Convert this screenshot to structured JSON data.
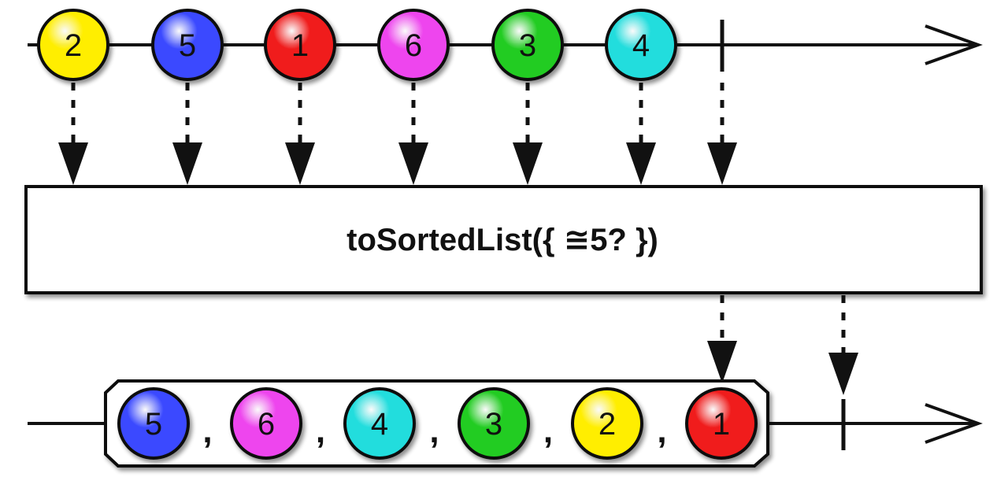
{
  "operator": {
    "label": "toSortedList({ ≅5? })"
  },
  "colors": {
    "yellow": "#ffee00",
    "blue": "#3a49ff",
    "red": "#f01c1c",
    "magenta": "#ee44ee",
    "green": "#22cc22",
    "cyan": "#22dddd"
  },
  "input_stream": {
    "marbles": [
      {
        "value": "2",
        "color": "yellow"
      },
      {
        "value": "5",
        "color": "blue"
      },
      {
        "value": "1",
        "color": "red"
      },
      {
        "value": "6",
        "color": "magenta"
      },
      {
        "value": "3",
        "color": "green"
      },
      {
        "value": "4",
        "color": "cyan"
      }
    ],
    "completes": true
  },
  "output_stream": {
    "list_marbles": [
      {
        "value": "5",
        "color": "blue"
      },
      {
        "value": "6",
        "color": "magenta"
      },
      {
        "value": "4",
        "color": "cyan"
      },
      {
        "value": "3",
        "color": "green"
      },
      {
        "value": "2",
        "color": "yellow"
      },
      {
        "value": "1",
        "color": "red"
      }
    ],
    "separator": ",",
    "completes": true
  }
}
